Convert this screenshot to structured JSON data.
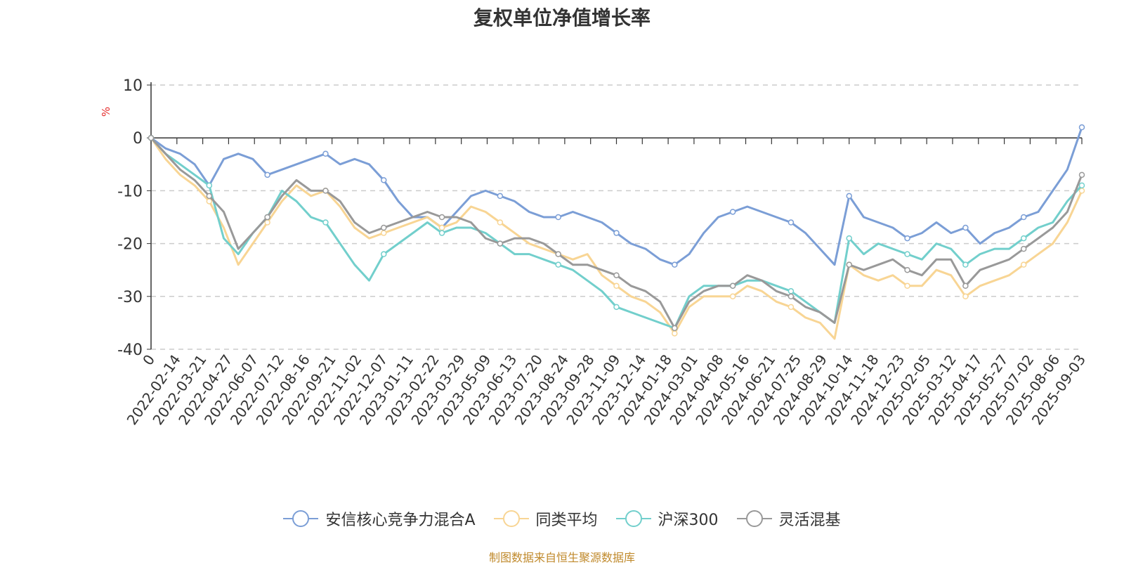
{
  "chart_data": {
    "type": "line",
    "title": "复权单位净值增长率",
    "ylabel": "%",
    "ylim": [
      -40,
      10
    ],
    "yticks": [
      10,
      0,
      -10,
      -20,
      -30,
      -40
    ],
    "grid": true,
    "legend_position": "bottom",
    "x_tick_labels": [
      "0",
      "2022-02-14",
      "2022-03-21",
      "2022-04-27",
      "2022-06-07",
      "2022-07-12",
      "2022-08-16",
      "2022-09-21",
      "2022-11-02",
      "2022-12-07",
      "2023-01-11",
      "2023-02-22",
      "2023-03-29",
      "2023-05-09",
      "2023-06-13",
      "2023-07-20",
      "2023-08-24",
      "2023-09-28",
      "2023-11-09",
      "2023-12-14",
      "2024-01-18",
      "2024-03-01",
      "2024-04-08",
      "2024-05-16",
      "2024-06-21",
      "2024-07-25",
      "2024-08-29",
      "2024-10-14",
      "2024-11-18",
      "2024-12-23",
      "2025-02-05",
      "2025-03-12",
      "2025-04-17",
      "2025-05-27",
      "2025-07-02",
      "2025-08-06",
      "2025-09-03"
    ],
    "series": [
      {
        "name": "安信核心竞争力混合A",
        "color": "#7b9ed6",
        "values": [
          0,
          -2,
          -3,
          -5,
          -9,
          -4,
          -3,
          -4,
          -7,
          -6,
          -5,
          -4,
          -3,
          -5,
          -4,
          -5,
          -8,
          -12,
          -15,
          -15,
          -17,
          -14,
          -11,
          -10,
          -11,
          -12,
          -14,
          -15,
          -15,
          -14,
          -15,
          -16,
          -18,
          -20,
          -21,
          -23,
          -24,
          -22,
          -18,
          -15,
          -14,
          -13,
          -14,
          -15,
          -16,
          -18,
          -21,
          -24,
          -11,
          -15,
          -16,
          -17,
          -19,
          -18,
          -16,
          -18,
          -17,
          -20,
          -18,
          -17,
          -15,
          -14,
          -10,
          -6,
          2
        ]
      },
      {
        "name": "同类平均",
        "color": "#f8d594",
        "values": [
          0,
          -4,
          -7,
          -9,
          -12,
          -17,
          -24,
          -20,
          -16,
          -12,
          -9,
          -11,
          -10,
          -13,
          -17,
          -19,
          -18,
          -17,
          -16,
          -15,
          -17,
          -16,
          -13,
          -14,
          -16,
          -18,
          -20,
          -21,
          -22,
          -23,
          -22,
          -26,
          -28,
          -30,
          -31,
          -33,
          -37,
          -32,
          -30,
          -30,
          -30,
          -28,
          -29,
          -31,
          -32,
          -34,
          -35,
          -38,
          -24,
          -26,
          -27,
          -26,
          -28,
          -28,
          -25,
          -26,
          -30,
          -28,
          -27,
          -26,
          -24,
          -22,
          -20,
          -16,
          -10
        ]
      },
      {
        "name": "沪深300",
        "color": "#72cfcc",
        "values": [
          0,
          -3,
          -5,
          -7,
          -9,
          -19,
          -22,
          -18,
          -15,
          -10,
          -12,
          -15,
          -16,
          -20,
          -24,
          -27,
          -22,
          -20,
          -18,
          -16,
          -18,
          -17,
          -17,
          -18,
          -20,
          -22,
          -22,
          -23,
          -24,
          -25,
          -27,
          -29,
          -32,
          -33,
          -34,
          -35,
          -36,
          -30,
          -28,
          -28,
          -28,
          -27,
          -27,
          -28,
          -29,
          -31,
          -33,
          -35,
          -19,
          -22,
          -20,
          -21,
          -22,
          -23,
          -20,
          -21,
          -24,
          -22,
          -21,
          -21,
          -19,
          -17,
          -16,
          -12,
          -9
        ]
      },
      {
        "name": "灵活混基",
        "color": "#999999",
        "values": [
          0,
          -3,
          -6,
          -8,
          -11,
          -14,
          -21,
          -18,
          -15,
          -11,
          -8,
          -10,
          -10,
          -12,
          -16,
          -18,
          -17,
          -16,
          -15,
          -14,
          -15,
          -15,
          -16,
          -19,
          -20,
          -19,
          -19,
          -20,
          -22,
          -24,
          -24,
          -25,
          -26,
          -28,
          -29,
          -31,
          -36,
          -31,
          -29,
          -28,
          -28,
          -26,
          -27,
          -29,
          -30,
          -32,
          -33,
          -35,
          -24,
          -25,
          -24,
          -23,
          -25,
          -26,
          -23,
          -23,
          -28,
          -25,
          -24,
          -23,
          -21,
          -19,
          -17,
          -14,
          -7
        ]
      }
    ]
  },
  "legend": [
    "安信核心竞争力混合A",
    "同类平均",
    "沪深300",
    "灵活混基"
  ],
  "source_text": "制图数据来自恒生聚源数据库"
}
